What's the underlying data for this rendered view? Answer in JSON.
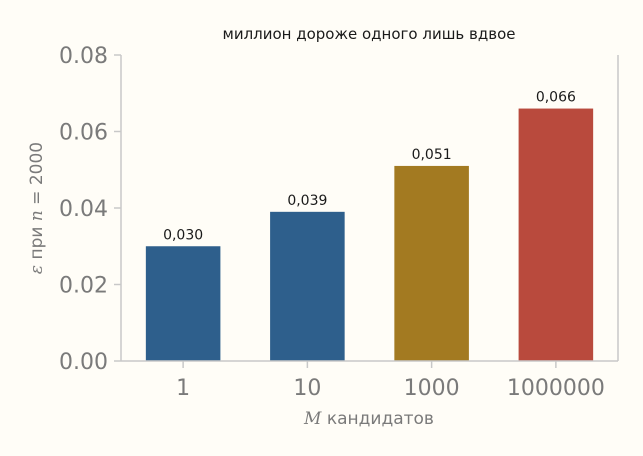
{
  "chart_data": {
    "type": "bar",
    "title": "миллион дороже одного лишь вдвое",
    "categories": [
      "1",
      "10",
      "1000",
      "1000000"
    ],
    "values": [
      0.03,
      0.039,
      0.051,
      0.066
    ],
    "value_labels": [
      "0,030",
      "0,039",
      "0,051",
      "0,066"
    ],
    "bar_colors": [
      "#2e5f8c",
      "#2e5f8c",
      "#a37a21",
      "#b94a3d"
    ],
    "ylim": [
      0,
      0.08
    ],
    "yticks": [
      0.0,
      0.02,
      0.04,
      0.06,
      0.08
    ],
    "ytick_labels": [
      "0.00",
      "0.02",
      "0.04",
      "0.06",
      "0.08"
    ],
    "xlabel": {
      "symbol": "M",
      "text": " кандидатов"
    },
    "ylabel": {
      "symbol": "ε",
      "mid": " при ",
      "symbol2": "n",
      "rest": " = 2000"
    },
    "grid": false
  }
}
